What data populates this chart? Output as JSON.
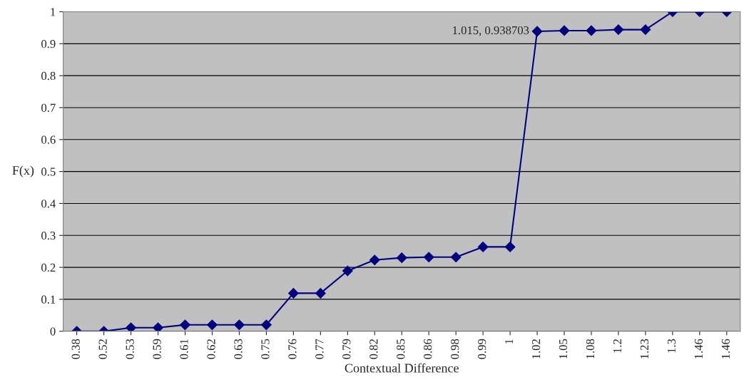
{
  "chart_data": {
    "type": "line",
    "xlabel": "Contextual Difference",
    "ylabel": "F(x)",
    "categories": [
      "0.38",
      "0.52",
      "0.53",
      "0.59",
      "0.61",
      "0.62",
      "0.63",
      "0.75",
      "0.76",
      "0.77",
      "0.79",
      "0.82",
      "0.85",
      "0.86",
      "0.98",
      "0.99",
      "1",
      "1.02",
      "1.05",
      "1.08",
      "1.2",
      "1.23",
      "1.3",
      "1.46",
      "1.46"
    ],
    "series": [
      {
        "color": "#000080",
        "values": [
          0,
          0,
          0.011,
          0.011,
          0.02,
          0.02,
          0.02,
          0.02,
          0.119,
          0.119,
          0.189,
          0.223,
          0.23,
          0.232,
          0.232,
          0.264,
          0.264,
          0.938703,
          0.941,
          0.941,
          0.944,
          0.944,
          1,
          1,
          1
        ]
      }
    ],
    "ylim": [
      0,
      1
    ],
    "yticks": [
      0,
      0.1,
      0.2,
      0.3,
      0.4,
      0.5,
      0.6,
      0.7,
      0.8,
      0.9,
      1
    ],
    "grid": "y",
    "marker": "diamond",
    "line_style": "solid",
    "legend": false,
    "annotations": [
      {
        "text": "1.015, 0.938703",
        "x": "1.02",
        "y": 0.938703
      }
    ]
  }
}
